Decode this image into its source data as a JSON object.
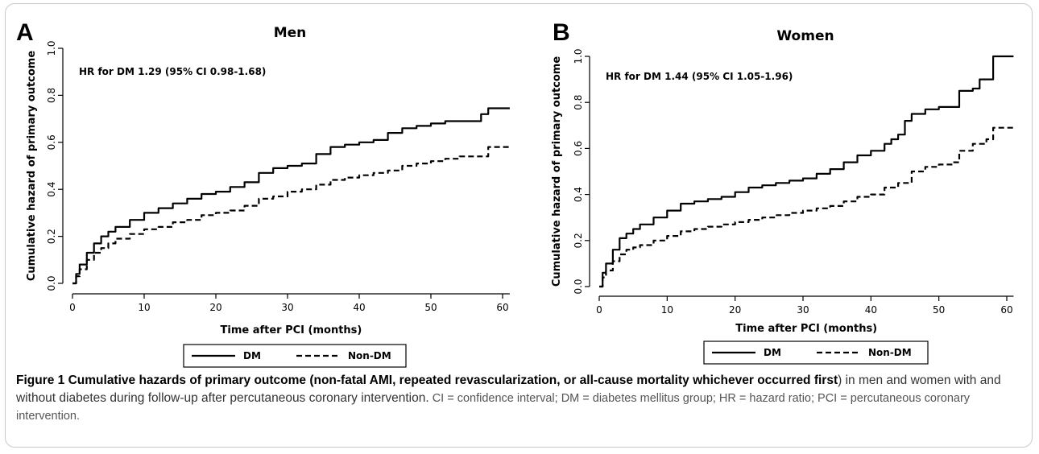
{
  "caption": {
    "lead": "Figure 1 Cumulative hazards of primary outcome (non-fatal AMI, repeated revascularization, or all-cause mortality whichever occurred first",
    "mid": ") in men and women with and without diabetes during follow-up after percutaneous coronary intervention.",
    "tail": " CI = confidence interval; DM = diabetes mellitus group; HR = hazard ratio; PCI = percutaneous coronary intervention."
  },
  "chart_data": [
    {
      "type": "line",
      "panel": "A",
      "title": "Men",
      "xlabel": "Time after PCI (months)",
      "ylabel": "Cumulative hazard of primary outcome",
      "xlim": [
        0,
        61
      ],
      "ylim": [
        0,
        1.0
      ],
      "xticks": [
        "0",
        "10",
        "20",
        "30",
        "40",
        "50",
        "60"
      ],
      "yticks": [
        "0.0",
        "0.2",
        "0.4",
        "0.6",
        "0.8",
        "1.0"
      ],
      "annotation": "HR for DM 1.29 (95% CI 0.98-1.68)",
      "grid": false,
      "legend_position": "bottom",
      "series": [
        {
          "name": "DM",
          "style": "solid",
          "x": [
            0,
            0.5,
            1,
            2,
            3,
            4,
            5,
            6,
            8,
            10,
            12,
            14,
            16,
            18,
            20,
            22,
            24,
            26,
            28,
            30,
            32,
            34,
            36,
            38,
            40,
            42,
            44,
            46,
            48,
            50,
            52,
            54,
            56,
            57,
            58,
            61
          ],
          "y": [
            0,
            0.04,
            0.08,
            0.13,
            0.17,
            0.2,
            0.22,
            0.24,
            0.27,
            0.3,
            0.32,
            0.34,
            0.36,
            0.38,
            0.39,
            0.41,
            0.43,
            0.47,
            0.49,
            0.5,
            0.51,
            0.55,
            0.58,
            0.59,
            0.6,
            0.61,
            0.64,
            0.66,
            0.67,
            0.68,
            0.69,
            0.69,
            0.69,
            0.72,
            0.745,
            0.745
          ]
        },
        {
          "name": "Non-DM",
          "style": "dashed",
          "x": [
            0,
            0.5,
            1,
            2,
            3,
            4,
            5,
            6,
            8,
            10,
            12,
            14,
            16,
            18,
            20,
            22,
            24,
            26,
            28,
            30,
            32,
            34,
            36,
            38,
            40,
            42,
            44,
            46,
            48,
            50,
            52,
            54,
            56,
            58,
            61
          ],
          "y": [
            0,
            0.03,
            0.06,
            0.1,
            0.13,
            0.15,
            0.17,
            0.19,
            0.21,
            0.23,
            0.24,
            0.26,
            0.27,
            0.29,
            0.3,
            0.31,
            0.33,
            0.36,
            0.37,
            0.39,
            0.4,
            0.42,
            0.44,
            0.45,
            0.46,
            0.47,
            0.48,
            0.5,
            0.51,
            0.52,
            0.53,
            0.54,
            0.54,
            0.58,
            0.58
          ]
        }
      ]
    },
    {
      "type": "line",
      "panel": "B",
      "title": "Women",
      "xlabel": "Time after PCI (months)",
      "ylabel": "Cumulative hazard of primary outcome",
      "xlim": [
        0,
        61
      ],
      "ylim": [
        0,
        1.0
      ],
      "xticks": [
        "0",
        "10",
        "20",
        "30",
        "40",
        "50",
        "60"
      ],
      "yticks": [
        "0.0",
        "0.2",
        "0.4",
        "0.6",
        "0.8",
        "1.0"
      ],
      "annotation": "HR for DM 1.44 (95% CI 1.05-1.96)",
      "grid": false,
      "legend_position": "bottom",
      "series": [
        {
          "name": "DM",
          "style": "solid",
          "x": [
            0,
            0.5,
            1,
            2,
            3,
            4,
            5,
            6,
            8,
            10,
            12,
            14,
            16,
            18,
            20,
            22,
            24,
            26,
            28,
            30,
            32,
            34,
            36,
            38,
            40,
            42,
            43,
            44,
            45,
            46,
            48,
            50,
            52,
            53,
            55,
            56,
            58,
            61
          ],
          "y": [
            0,
            0.06,
            0.1,
            0.16,
            0.21,
            0.23,
            0.25,
            0.27,
            0.3,
            0.33,
            0.36,
            0.37,
            0.38,
            0.39,
            0.41,
            0.43,
            0.44,
            0.45,
            0.46,
            0.47,
            0.49,
            0.51,
            0.54,
            0.57,
            0.59,
            0.62,
            0.64,
            0.66,
            0.72,
            0.75,
            0.77,
            0.78,
            0.78,
            0.85,
            0.86,
            0.9,
            1.0,
            1.0
          ]
        },
        {
          "name": "Non-DM",
          "style": "dashed",
          "x": [
            0,
            0.5,
            1,
            2,
            3,
            4,
            5,
            6,
            8,
            10,
            12,
            14,
            16,
            18,
            20,
            22,
            24,
            26,
            28,
            30,
            32,
            34,
            36,
            38,
            40,
            42,
            44,
            46,
            48,
            50,
            52,
            53,
            55,
            57,
            58,
            61
          ],
          "y": [
            0,
            0.04,
            0.07,
            0.11,
            0.14,
            0.16,
            0.17,
            0.18,
            0.2,
            0.22,
            0.24,
            0.25,
            0.26,
            0.27,
            0.28,
            0.29,
            0.3,
            0.31,
            0.32,
            0.33,
            0.34,
            0.35,
            0.37,
            0.39,
            0.4,
            0.43,
            0.45,
            0.5,
            0.52,
            0.53,
            0.54,
            0.59,
            0.62,
            0.64,
            0.69,
            0.69
          ]
        }
      ]
    }
  ]
}
